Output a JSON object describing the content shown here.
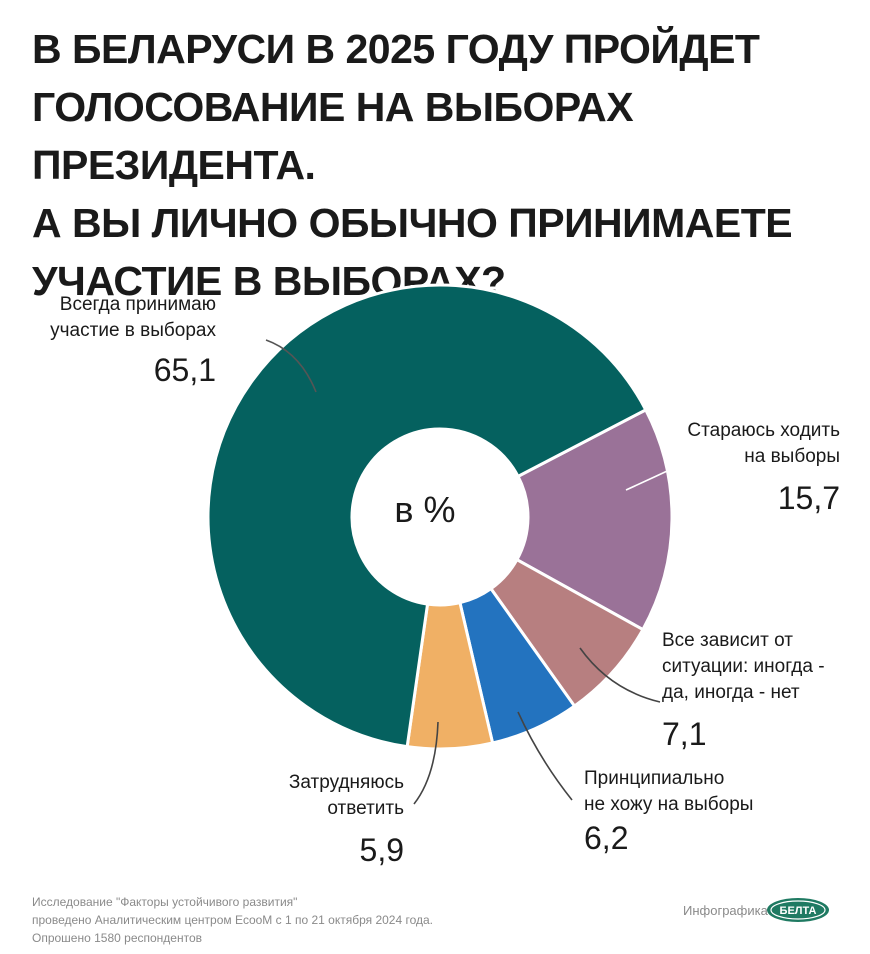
{
  "title_lines": [
    "В БЕЛАРУСИ В 2025 ГОДУ ПРОЙДЕТ",
    "ГОЛОСОВАНИЕ НА ВЫБОРАХ ПРЕЗИДЕНТА.",
    "А ВЫ ЛИЧНО ОБЫЧНО ПРИНИМАЕТЕ",
    "УЧАСТИЕ В ВЫБОРАХ?"
  ],
  "center_label": "в %",
  "chart_data": {
    "type": "pie",
    "donut": true,
    "unit": "%",
    "slices": [
      {
        "label": "Всегда принимаю участие в выборах",
        "label_lines": [
          "Всегда принимаю",
          "участие в выборах"
        ],
        "value": 65.1,
        "value_text": "65,1",
        "color": "#05615f"
      },
      {
        "label": "Стараюсь ходить на выборы",
        "label_lines": [
          "Стараюсь ходить",
          "на выборы"
        ],
        "value": 15.7,
        "value_text": "15,7",
        "color": "#9a7298"
      },
      {
        "label": "Все зависит от ситуации: иногда - да, иногда - нет",
        "label_lines": [
          "Все зависит от",
          "ситуации: иногда -",
          "да, иногда - нет"
        ],
        "value": 7.1,
        "value_text": "7,1",
        "color": "#b77f80"
      },
      {
        "label": "Принципиально не хожу на выборы",
        "label_lines": [
          "Принципиально",
          "не хожу на выборы"
        ],
        "value": 6.2,
        "value_text": "6,2",
        "color": "#2373bf"
      },
      {
        "label": "Затрудняюсь ответить",
        "label_lines": [
          "Затрудняюсь",
          "ответить"
        ],
        "value": 5.9,
        "value_text": "5,9",
        "color": "#f0b065"
      }
    ]
  },
  "footer_lines": [
    "Исследование \"Факторы устойчивого развития\"",
    "проведено Аналитическим центром EcooM с 1 по 21 октября 2024 года.",
    "Опрошено 1580 респондентов"
  ],
  "credit": "Инфографика",
  "logo_text": "БЕЛТА"
}
